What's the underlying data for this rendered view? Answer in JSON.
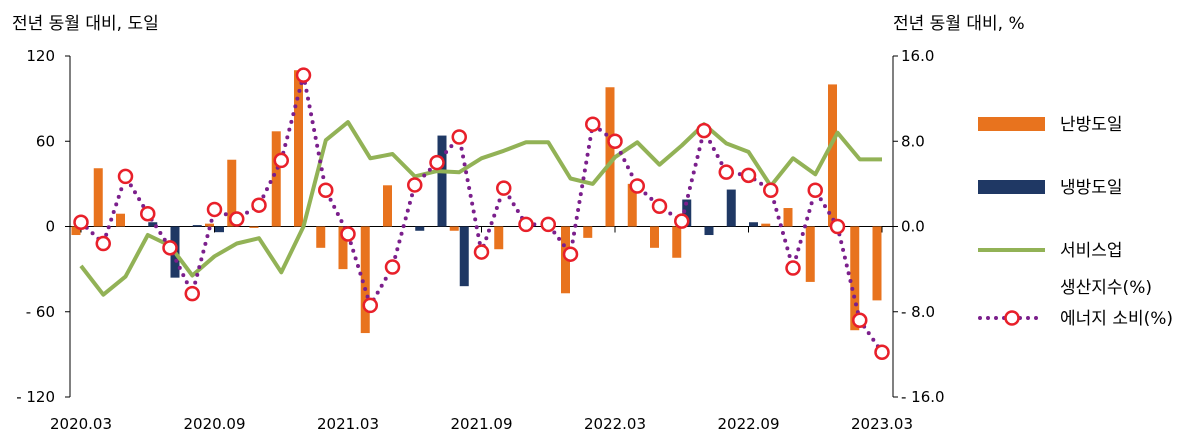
{
  "chart_data": {
    "type": "bar",
    "left_unit": "전년 동월 대비, 도일",
    "right_unit": "전년 동월 대비, %",
    "x": [
      "2020.03",
      "2020.04",
      "2020.05",
      "2020.06",
      "2020.07",
      "2020.08",
      "2020.09",
      "2020.10",
      "2020.11",
      "2020.12",
      "2021.01",
      "2021.02",
      "2021.03",
      "2021.04",
      "2021.05",
      "2021.06",
      "2021.07",
      "2021.08",
      "2021.09",
      "2021.10",
      "2021.11",
      "2021.12",
      "2022.01",
      "2022.02",
      "2022.03",
      "2022.04",
      "2022.05",
      "2022.06",
      "2022.07",
      "2022.08",
      "2022.09",
      "2022.10",
      "2022.11",
      "2022.12",
      "2023.01",
      "2023.02",
      "2023.03"
    ],
    "x_tick_labels": [
      "2020.03",
      "2020.09",
      "2021.03",
      "2021.09",
      "2022.03",
      "2022.09",
      "2023.03"
    ],
    "y_left": {
      "range": [
        -120,
        120
      ],
      "ticks": [
        120,
        60,
        0,
        -60,
        -120
      ],
      "tick_labels": [
        "120",
        "60",
        "0",
        "- 60",
        "- 120"
      ]
    },
    "y_right": {
      "range": [
        -16,
        16
      ],
      "ticks": [
        16,
        8,
        0,
        -8,
        -16
      ],
      "tick_labels": [
        "16.0",
        "8.0",
        "0.0",
        "- 8.0",
        "- 16.0"
      ]
    },
    "series": [
      {
        "name": "난방도일",
        "type": "bar",
        "axis": "left",
        "color": "#E8731E",
        "values": [
          -6,
          41,
          9,
          0,
          0,
          0,
          2,
          47,
          -1,
          67,
          110,
          -15,
          -30,
          -75,
          29,
          0,
          0,
          -3,
          0,
          -16,
          0,
          0,
          -47,
          -8,
          98,
          30,
          -15,
          -22,
          0,
          0,
          0,
          2,
          13,
          -39,
          100,
          -73,
          -52
        ]
      },
      {
        "name": "냉방도일",
        "type": "bar",
        "axis": "left",
        "color": "#1F3864",
        "values": [
          0,
          0,
          0,
          3,
          -36,
          1,
          -4,
          0,
          0,
          0,
          0,
          0,
          0,
          0,
          0,
          -3,
          64,
          -42,
          0,
          0,
          0,
          0,
          0,
          0,
          0,
          0,
          0,
          19,
          -6,
          26,
          3,
          0,
          0,
          0,
          0,
          0,
          0
        ]
      },
      {
        "name": "서비스업 생산지수(%)",
        "type": "line",
        "axis": "right",
        "color": "#92B256",
        "values": [
          -3.7,
          -6.4,
          -4.7,
          -0.8,
          -1.8,
          -4.6,
          -2.8,
          -1.6,
          -1.1,
          -4.3,
          0.0,
          8.1,
          9.8,
          6.4,
          6.8,
          4.7,
          5.2,
          5.1,
          6.4,
          7.1,
          7.9,
          7.9,
          4.5,
          4.0,
          6.5,
          7.9,
          5.8,
          7.6,
          9.6,
          7.8,
          7.0,
          3.8,
          6.4,
          4.9,
          8.8,
          6.3,
          6.3
        ]
      },
      {
        "name": "에너지 소비(%)",
        "type": "line",
        "axis": "right",
        "color": "#7B1F8C",
        "marker_color": "#E8202A",
        "values": [
          0.4,
          -1.6,
          4.7,
          1.2,
          -2.0,
          -6.3,
          1.6,
          0.7,
          2.0,
          6.2,
          14.2,
          3.4,
          -0.7,
          -7.4,
          -3.8,
          3.9,
          6.0,
          8.4,
          -2.4,
          3.6,
          0.2,
          0.2,
          -2.6,
          9.6,
          8.0,
          3.8,
          1.9,
          0.5,
          9.0,
          5.1,
          4.8,
          3.4,
          -3.9,
          3.4,
          0.0,
          -8.8,
          -11.8
        ]
      }
    ],
    "legend": {
      "placement": "right",
      "entries": [
        {
          "kind": "bar",
          "color": "#E8731E",
          "lines": [
            "난방도일"
          ]
        },
        {
          "kind": "bar",
          "color": "#1F3864",
          "lines": [
            "냉방도일"
          ]
        },
        {
          "kind": "line",
          "color": "#92B256",
          "lines": [
            "서비스업",
            "생산지수(%)"
          ]
        },
        {
          "kind": "dotted-marker",
          "color": "#7B1F8C",
          "marker_color": "#E8202A",
          "lines": [
            "에너지 소비(%)"
          ]
        }
      ]
    }
  }
}
